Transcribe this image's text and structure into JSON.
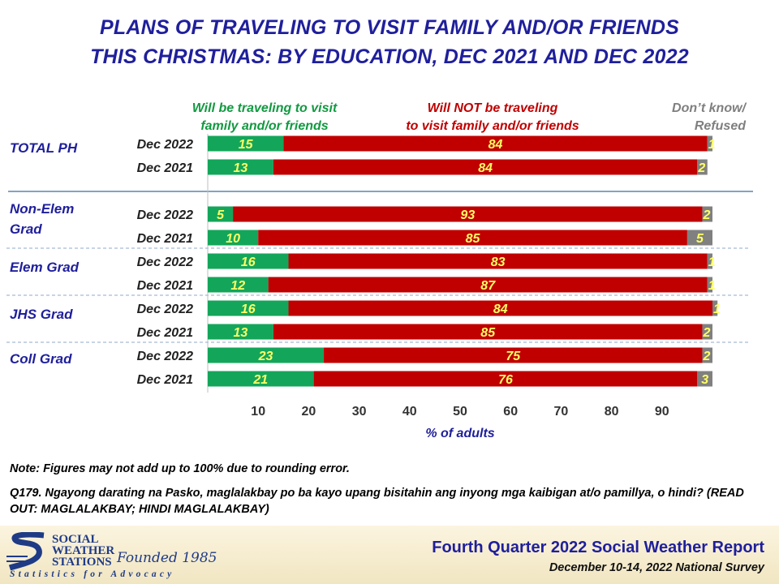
{
  "title": {
    "line1": "PLANS OF TRAVELING TO VISIT FAMILY AND/OR FRIENDS",
    "line2": "THIS CHRISTMAS: BY EDUCATION, DEC 2021 AND DEC 2022"
  },
  "colors": {
    "traveling": "#13a65a",
    "not_traveling": "#c00000",
    "dont_know": "#808080",
    "value_label": "#ffff66",
    "title": "#1f1f9c",
    "legend_green": "#119a40",
    "legend_red": "#c00000",
    "legend_gray": "#7f7f7f"
  },
  "chart_data": {
    "type": "bar",
    "orientation": "horizontal",
    "stacked": true,
    "xlabel": "% of adults",
    "xlim": [
      0,
      100
    ],
    "xticks": [
      10,
      20,
      30,
      40,
      50,
      60,
      70,
      80,
      90
    ],
    "legend_placement": "top",
    "series": [
      {
        "name": "Will be traveling to visit family and/or friends",
        "legend_line1": "Will be traveling to visit",
        "legend_line2": "family and/or friends"
      },
      {
        "name": "Will NOT be traveling to visit family and/or friends",
        "legend_line1": "Will NOT be traveling",
        "legend_line2": "to visit family and/or friends"
      },
      {
        "name": "Don’t know/ Refused",
        "legend_line1": "Don’t know/",
        "legend_line2": "Refused"
      }
    ],
    "groups": [
      {
        "label_lines": [
          "TOTAL PH"
        ],
        "rows": [
          {
            "period": "Dec 2022",
            "values": [
              15,
              84,
              1
            ]
          },
          {
            "period": "Dec 2021",
            "values": [
              13,
              84,
              2
            ]
          }
        ]
      },
      {
        "label_lines": [
          "Non-Elem",
          "Grad"
        ],
        "rows": [
          {
            "period": "Dec 2022",
            "values": [
              5,
              93,
              2
            ]
          },
          {
            "period": "Dec 2021",
            "values": [
              10,
              85,
              5
            ]
          }
        ]
      },
      {
        "label_lines": [
          "Elem Grad"
        ],
        "rows": [
          {
            "period": "Dec 2022",
            "values": [
              16,
              83,
              1
            ]
          },
          {
            "period": "Dec 2021",
            "values": [
              12,
              87,
              1
            ]
          }
        ]
      },
      {
        "label_lines": [
          "JHS Grad"
        ],
        "rows": [
          {
            "period": "Dec 2022",
            "values": [
              16,
              84,
              1
            ]
          },
          {
            "period": "Dec 2021",
            "values": [
              13,
              85,
              2
            ]
          }
        ]
      },
      {
        "label_lines": [
          "Coll Grad"
        ],
        "rows": [
          {
            "period": "Dec 2022",
            "values": [
              23,
              75,
              2
            ]
          },
          {
            "period": "Dec 2021",
            "values": [
              21,
              76,
              3
            ]
          }
        ]
      }
    ]
  },
  "note": "Note: Figures may not add up to 100% due to rounding error.",
  "question": "Q179. Ngayong darating na Pasko, maglalakbay po ba kayo upang bisitahin ang inyong mga kaibigan at/o pamillya, o hindi? (READ OUT: MAGLALAKBAY; HINDI MAGLALAKBAY)",
  "footer": {
    "logo_lines": [
      "SOCIAL",
      "WEATHER",
      "STATIONS"
    ],
    "founded": "Founded 1985",
    "tagline": "Statistics for Advocacy",
    "report_title": "Fourth Quarter 2022 Social Weather Report",
    "report_subtitle": "December 10-14, 2022 National Survey"
  }
}
